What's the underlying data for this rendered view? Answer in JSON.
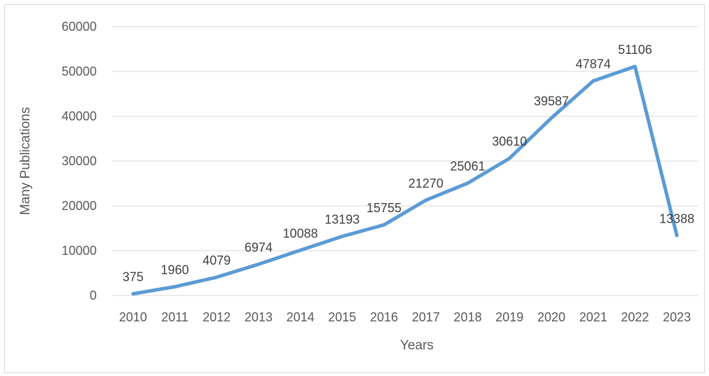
{
  "chart_data": {
    "type": "line",
    "title": "",
    "xlabel": "Years",
    "ylabel": "Many Publications",
    "categories": [
      "2010",
      "2011",
      "2012",
      "2013",
      "2014",
      "2015",
      "2016",
      "2017",
      "2018",
      "2019",
      "2020",
      "2021",
      "2022",
      "2023"
    ],
    "series": [
      {
        "values": [
          375,
          1960,
          4079,
          6974,
          10088,
          13193,
          15755,
          21270,
          25061,
          30610,
          39587,
          47874,
          51106,
          13388
        ],
        "color": "#5b9bd5"
      }
    ],
    "ylim": [
      0,
      60000
    ],
    "yticks": [
      0,
      10000,
      20000,
      30000,
      40000,
      50000,
      60000
    ],
    "ytick_labels": [
      "0",
      "10000",
      "20000",
      "30000",
      "40000",
      "50000",
      "60000"
    ],
    "grid": true,
    "legend": "none",
    "gridline_color": "#d9d9d9"
  }
}
